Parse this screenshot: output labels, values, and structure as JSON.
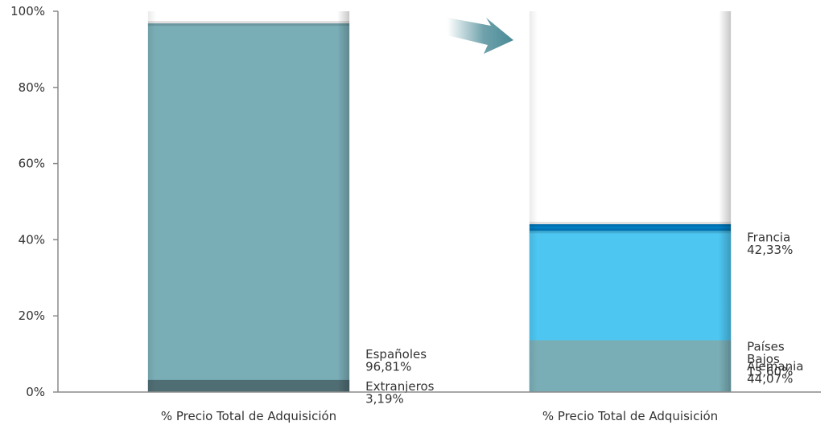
{
  "chart_data": {
    "type": "bar",
    "stacked": true,
    "percent": true,
    "ylim": [
      0,
      100
    ],
    "y_ticks": [
      "0%",
      "20%",
      "40%",
      "60%",
      "80%",
      "100%"
    ],
    "grid": false,
    "categories": [
      "% Precio Total de Adquisición",
      "% Precio Total de Adquisición"
    ],
    "bars": [
      {
        "segments": [
          {
            "name": "Españoles",
            "value": 96.81,
            "value_label": "96,81%",
            "color": "#7aaeb7"
          },
          {
            "name": "Extranjeros",
            "value": 3.19,
            "value_label": "3,19%",
            "color": "#4f6e74"
          }
        ]
      },
      {
        "segments": [
          {
            "name": "Alemania",
            "value": 44.07,
            "value_label": "44,07%",
            "color": "#0080c8"
          },
          {
            "name": "Francia",
            "value": 42.33,
            "value_label": "42,33%",
            "color": "#4dc6f2"
          },
          {
            "name": "Países Bajos",
            "name_lines": [
              "Países",
              "Bajos"
            ],
            "value": 13.6,
            "value_label": "13,60%",
            "color": "#7aaeb7"
          }
        ]
      }
    ],
    "arrow": {
      "from": "Extranjeros",
      "to": "bar-2",
      "color": "#4a8a96"
    }
  }
}
